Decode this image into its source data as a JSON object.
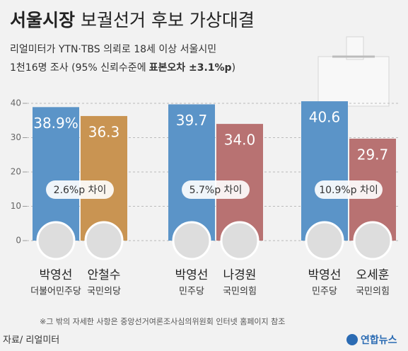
{
  "chart_data": {
    "type": "bar",
    "title": {
      "bold": "서울시장",
      "rest": "보궐선거 후보 가상대결"
    },
    "subtitle": [
      "리얼미터가 YTN·TBS 의뢰로 18세 이상 서울시민",
      "1천16명 조사 (95% 신뢰수준에",
      "표본오차 ±3.1%p",
      ")"
    ],
    "ylim": [
      0,
      40
    ],
    "yticks": [
      0,
      10,
      20,
      30,
      40
    ],
    "grid": true,
    "groups": [
      {
        "diff_label": "2.6%p 차이",
        "candidates": [
          {
            "name": "박영선",
            "party": "더불어민주당",
            "value": 38.9,
            "value_label": "38.9%",
            "color": "#5b94c8"
          },
          {
            "name": "안철수",
            "party": "국민의당",
            "value": 36.3,
            "value_label": "36.3",
            "color": "#c99452"
          }
        ]
      },
      {
        "diff_label": "5.7%p 차이",
        "candidates": [
          {
            "name": "박영선",
            "party": "민주당",
            "value": 39.7,
            "value_label": "39.7",
            "color": "#5b94c8"
          },
          {
            "name": "나경원",
            "party": "국민의힘",
            "value": 34.0,
            "value_label": "34.0",
            "color": "#b87272"
          }
        ]
      },
      {
        "diff_label": "10.9%p 차이",
        "candidates": [
          {
            "name": "박영선",
            "party": "민주당",
            "value": 40.6,
            "value_label": "40.6",
            "color": "#5b94c8"
          },
          {
            "name": "오세훈",
            "party": "국민의힘",
            "value": 29.7,
            "value_label": "29.7",
            "color": "#b87272"
          }
        ]
      }
    ],
    "footnote": "※그 밖의 자세한 사항은 중앙선거여론조사심의위원회 인터넷 홈페이지 참조",
    "source": "자료/ 리얼미터",
    "logo": "연합뉴스"
  }
}
